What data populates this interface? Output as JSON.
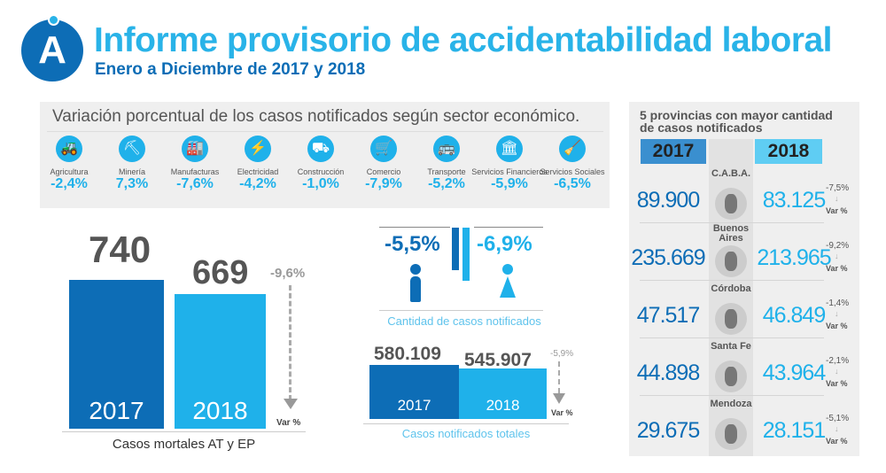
{
  "header": {
    "logo_letter": "A",
    "title": "Informe provisorio de accidentabilidad laboral",
    "subtitle": "Enero a Diciembre de 2017 y 2018"
  },
  "sectors": {
    "title": "Variación porcentual de los casos notificados según sector económico.",
    "items": [
      {
        "label": "Agricultura",
        "value": "-2,4%",
        "icon": "tractor-icon",
        "glyph": "🚜"
      },
      {
        "label": "Minería",
        "value": "7,3%",
        "icon": "oil-pump-icon",
        "glyph": "⛏"
      },
      {
        "label": "Manufacturas",
        "value": "-7,6%",
        "icon": "factory-icon",
        "glyph": "🏭"
      },
      {
        "label": "Electricidad",
        "value": "-4,2%",
        "icon": "lightning-icon",
        "glyph": "⚡"
      },
      {
        "label": "Construcción",
        "value": "-1,0%",
        "icon": "wheelbarrow-icon",
        "glyph": "⛟"
      },
      {
        "label": "Comercio",
        "value": "-7,9%",
        "icon": "cart-icon",
        "glyph": "🛒"
      },
      {
        "label": "Transporte",
        "value": "-5,2%",
        "icon": "bus-icon",
        "glyph": "🚌"
      },
      {
        "label": "Servicios Financieros",
        "value": "-5,9%",
        "icon": "bank-icon",
        "glyph": "🏛"
      },
      {
        "label": "Servicios Sociales",
        "value": "-6,5%",
        "icon": "cleaning-icon",
        "glyph": "🧹"
      }
    ]
  },
  "mortal": {
    "v2017": "740",
    "v2018": "669",
    "y2017": "2017",
    "y2018": "2018",
    "var": "-9,6%",
    "var_label": "Var %",
    "caption": "Casos mortales AT y EP"
  },
  "gender": {
    "male": "-5,5%",
    "female": "-6,9%",
    "caption": "Cantidad de casos notificados"
  },
  "total": {
    "v2017": "580.109",
    "v2018": "545.907",
    "y2017": "2017",
    "y2018": "2018",
    "var": "-5,9%",
    "var_label": "Var %",
    "caption": "Casos notificados totales"
  },
  "provinces": {
    "title1": "5 provincias con mayor cantidad",
    "title2": "de casos notificados",
    "h2017": "2017",
    "h2018": "2018",
    "rows": [
      {
        "name": "C.A.B.A.",
        "v2017": "89.900",
        "v2018": "83.125",
        "var": "-7,5%",
        "var_label": "Var %"
      },
      {
        "name": "Buenos Aires",
        "v2017": "235.669",
        "v2018": "213.965",
        "var": "-9,2%",
        "var_label": "Var %"
      },
      {
        "name": "Córdoba",
        "v2017": "47.517",
        "v2018": "46.849",
        "var": "-1,4%",
        "var_label": "Var %"
      },
      {
        "name": "Santa Fe",
        "v2017": "44.898",
        "v2018": "43.964",
        "var": "-2,1%",
        "var_label": "Var %"
      },
      {
        "name": "Mendoza",
        "v2017": "29.675",
        "v2018": "28.151",
        "var": "-5,1%",
        "var_label": "Var %"
      }
    ]
  },
  "colors": {
    "dark_blue": "#0d6db6",
    "light_blue": "#1fb1ea",
    "title_blue": "#29b3e8"
  },
  "chart_data": [
    {
      "type": "bar",
      "title": "Casos mortales AT y EP",
      "categories": [
        "2017",
        "2018"
      ],
      "values": [
        740,
        669
      ]
    },
    {
      "type": "bar",
      "title": "Casos notificados totales",
      "categories": [
        "2017",
        "2018"
      ],
      "values": [
        580109,
        545907
      ]
    }
  ]
}
